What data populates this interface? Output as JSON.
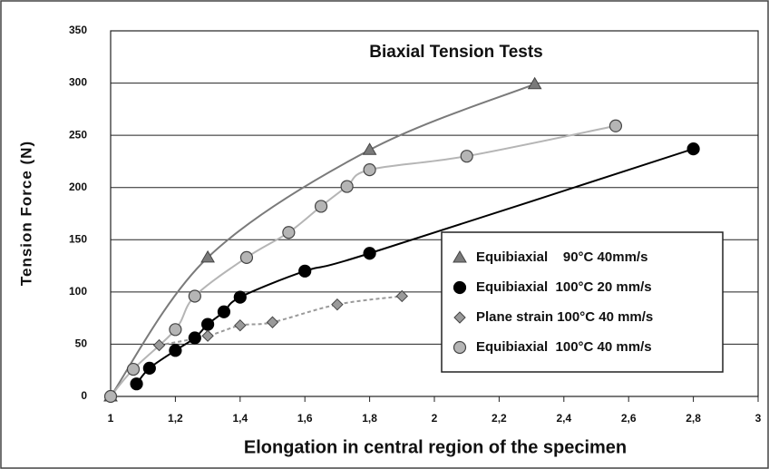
{
  "chart_data": {
    "type": "scatter",
    "title": "Biaxial Tension Tests",
    "x_label": "Elongation in central region of the  specimen",
    "y_label": "Tension Force (N)",
    "xlim": [
      1,
      3
    ],
    "ylim": [
      0,
      350
    ],
    "xticks": [
      1,
      {
        "value": 1.2,
        "label": "1,2"
      },
      {
        "value": 1.4,
        "label": "1,4"
      },
      {
        "value": 1.6,
        "label": "1,6"
      },
      {
        "value": 1.8,
        "label": "1,8"
      },
      2,
      {
        "value": 2.2,
        "label": "2,2"
      },
      {
        "value": 2.4,
        "label": "2,4"
      },
      {
        "value": 2.6,
        "label": "2,6"
      },
      {
        "value": 2.8,
        "label": "2,8"
      },
      3
    ],
    "yticks": [
      0,
      50,
      100,
      150,
      200,
      250,
      300,
      350
    ],
    "grid": true,
    "legend": "lower right",
    "series": [
      {
        "name": "Equibiaxial    90°C 40mm/s",
        "color": "#7a7a7a",
        "marker": "triangle",
        "dash": "solid",
        "x": [
          1,
          1.3,
          1.8,
          2.31
        ],
        "values": [
          0,
          133,
          236,
          299
        ]
      },
      {
        "name": "Equibiaxial  100°C 20 mm/s",
        "color": "#000000",
        "marker": "circle",
        "dash": "solid",
        "x": [
          1.08,
          1.12,
          1.2,
          1.26,
          1.3,
          1.35,
          1.4,
          1.6,
          1.8,
          2.8
        ],
        "values": [
          12,
          27,
          44,
          56,
          69,
          81,
          95,
          120,
          137,
          237
        ]
      },
      {
        "name": "Plane strain 100°C 40 mm/s",
        "color": "#9a9a9a",
        "marker": "diamond",
        "dash": "dashed",
        "x": [
          1.15,
          1.3,
          1.4,
          1.5,
          1.7,
          1.9
        ],
        "values": [
          49,
          58,
          68,
          71,
          88,
          96
        ]
      },
      {
        "name": "Equibiaxial  100°C 40 mm/s",
        "color": "#b5b5b5",
        "marker": "circle",
        "dash": "solid",
        "x": [
          1,
          1.07,
          1.2,
          1.26,
          1.42,
          1.55,
          1.65,
          1.73,
          1.8,
          2.1,
          2.56
        ],
        "values": [
          0,
          26,
          64,
          96,
          133,
          157,
          182,
          201,
          217,
          230,
          259
        ]
      }
    ]
  }
}
